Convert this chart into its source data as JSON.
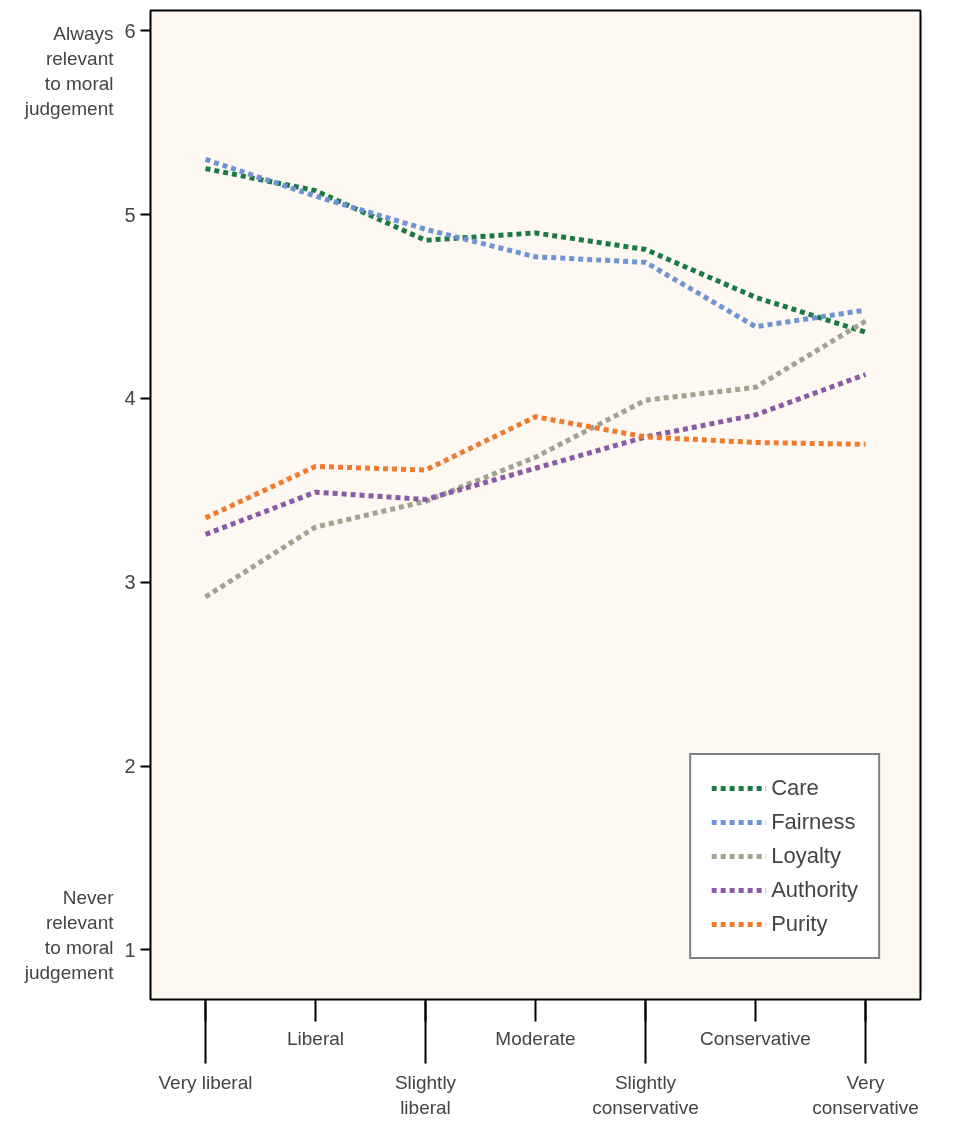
{
  "chart_data": {
    "type": "line",
    "categories": [
      "Very liberal",
      "Liberal",
      "Slightly liberal",
      "Moderate",
      "Slightly conservative",
      "Conservative",
      "Very conservative"
    ],
    "series": [
      {
        "name": "Care",
        "color": "#1b7a43",
        "values": [
          5.25,
          5.13,
          4.86,
          4.9,
          4.81,
          4.55,
          4.36
        ]
      },
      {
        "name": "Fairness",
        "color": "#6f93d3",
        "values": [
          5.3,
          5.1,
          4.92,
          4.77,
          4.74,
          4.39,
          4.48
        ]
      },
      {
        "name": "Loyalty",
        "color": "#9fa48f",
        "values": [
          2.92,
          3.3,
          3.44,
          3.68,
          3.99,
          4.06,
          4.42
        ]
      },
      {
        "name": "Authority",
        "color": "#8a5aa6",
        "values": [
          3.26,
          3.49,
          3.45,
          3.62,
          3.79,
          3.91,
          4.13
        ]
      },
      {
        "name": "Purity",
        "color": "#ee7c2e",
        "values": [
          3.35,
          3.63,
          3.61,
          3.9,
          3.79,
          3.76,
          3.75
        ]
      }
    ],
    "ylim": [
      0.73,
      6.11
    ],
    "yticks": [
      1,
      2,
      3,
      4,
      5,
      6
    ],
    "annotations": [
      "Always relevant to moral judgement",
      "Never relevant to moral judgement"
    ],
    "legend": "bottom right",
    "line_style": "dashed",
    "grid": false
  }
}
